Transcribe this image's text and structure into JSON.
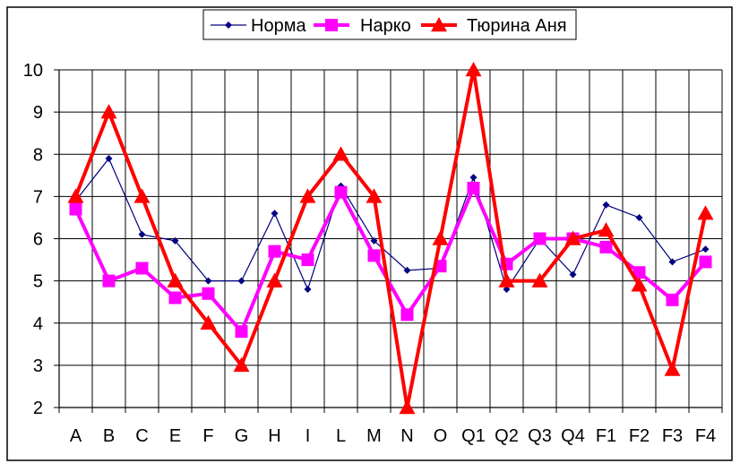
{
  "chart_data": {
    "type": "line",
    "title": "",
    "xlabel": "",
    "ylabel": "",
    "categories": [
      "A",
      "B",
      "C",
      "E",
      "F",
      "G",
      "H",
      "I",
      "L",
      "M",
      "N",
      "O",
      "Q1",
      "Q2",
      "Q3",
      "Q4",
      "F1",
      "F2",
      "F3",
      "F4"
    ],
    "ylim": [
      2,
      10
    ],
    "yticks": [
      "2",
      "3",
      "4",
      "5",
      "6",
      "7",
      "8",
      "9",
      "10"
    ],
    "grid": true,
    "legend_position": "top",
    "series": [
      {
        "name": "Норма",
        "color": "#000080",
        "marker": "diamond",
        "values": [
          6.9,
          7.9,
          6.1,
          5.95,
          5.0,
          5.0,
          6.6,
          4.8,
          7.25,
          5.95,
          5.25,
          5.3,
          7.45,
          4.8,
          6.0,
          5.15,
          6.8,
          6.5,
          5.45,
          5.75
        ]
      },
      {
        "name": "Нарко",
        "color": "#FF00FF",
        "marker": "square",
        "values": [
          6.7,
          5.0,
          5.3,
          4.6,
          4.7,
          3.8,
          5.7,
          5.5,
          7.1,
          5.6,
          4.2,
          5.35,
          7.2,
          5.4,
          6.0,
          6.0,
          5.8,
          5.2,
          4.55,
          5.45
        ]
      },
      {
        "name": "Тюрина Аня",
        "color": "#FF0000",
        "marker": "triangle",
        "values": [
          7,
          9,
          7,
          5,
          4,
          3,
          5,
          7,
          8,
          7,
          2,
          6,
          10,
          5,
          5,
          6,
          6.2,
          4.9,
          2.9,
          6.6
        ]
      }
    ]
  }
}
